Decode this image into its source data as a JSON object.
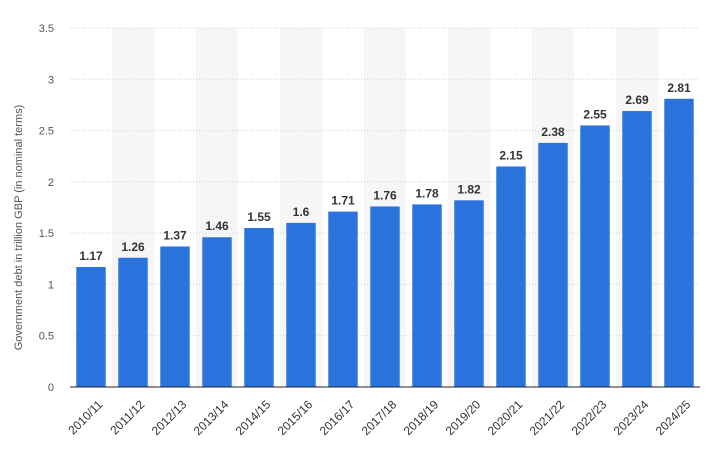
{
  "chart_data": {
    "type": "bar",
    "title": "",
    "xlabel": "",
    "ylabel": "Government debt in trillion GBP (in nominal terms)",
    "ylim": [
      0,
      3.5
    ],
    "yticks": [
      "0",
      "0.5",
      "1",
      "1.5",
      "2",
      "2.5",
      "3",
      "3.5"
    ],
    "ytick_values": [
      0,
      0.5,
      1,
      1.5,
      2,
      2.5,
      3,
      3.5
    ],
    "grid": true,
    "legend": "none",
    "bar_color": "#2a72dc",
    "categories": [
      "2010/11",
      "2011/12",
      "2012/13",
      "2013/14",
      "2014/15",
      "2015/16",
      "2016/17",
      "2017/18",
      "2018/19",
      "2019/20",
      "2020/21",
      "2021/22",
      "2022/23",
      "2023/24",
      "2024/25"
    ],
    "values": [
      1.17,
      1.26,
      1.37,
      1.46,
      1.55,
      1.6,
      1.71,
      1.76,
      1.78,
      1.82,
      2.15,
      2.38,
      2.55,
      2.69,
      2.81
    ],
    "value_labels": [
      "1.17",
      "1.26",
      "1.37",
      "1.46",
      "1.55",
      "1.6",
      "1.71",
      "1.76",
      "1.78",
      "1.82",
      "2.15",
      "2.38",
      "2.55",
      "2.69",
      "2.81"
    ]
  }
}
